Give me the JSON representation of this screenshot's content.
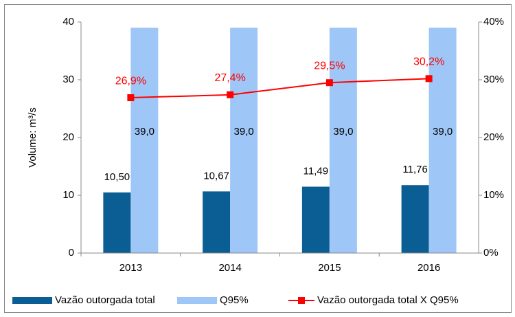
{
  "chart_data": {
    "type": "bar",
    "categories": [
      "2013",
      "2014",
      "2015",
      "2016"
    ],
    "y_label": "Volume: m³/s",
    "ylim": [
      0,
      40
    ],
    "yticks": [
      0,
      10,
      20,
      30,
      40
    ],
    "y2lim": [
      0,
      40
    ],
    "y2ticks": [
      {
        "value": 0,
        "label": "0%"
      },
      {
        "value": 10,
        "label": "10%"
      },
      {
        "value": 20,
        "label": "20%"
      },
      {
        "value": 30,
        "label": "30%"
      },
      {
        "value": 40,
        "label": "40%"
      }
    ],
    "legend": "bottom",
    "series": [
      {
        "name": "Vazão outorgada total",
        "type": "bar",
        "color": "#0b5e94",
        "values": [
          10.5,
          10.67,
          11.49,
          11.76
        ],
        "value_labels": [
          "10,50",
          "10,67",
          "11,49",
          "11,76"
        ]
      },
      {
        "name": "Q95%",
        "type": "bar",
        "color": "#9ec6f6",
        "values": [
          39,
          39,
          39,
          39
        ],
        "value_labels": [
          "39,0",
          "39,0",
          "39,0",
          "39,0"
        ]
      },
      {
        "name": "Vazão outorgada total X Q95%",
        "type": "line",
        "axis": "y2",
        "color": "#ff0000",
        "values": [
          26.9,
          27.4,
          29.5,
          30.2
        ],
        "value_labels": [
          "26,9%",
          "27,4%",
          "29,5%",
          "30,2%"
        ]
      }
    ]
  }
}
